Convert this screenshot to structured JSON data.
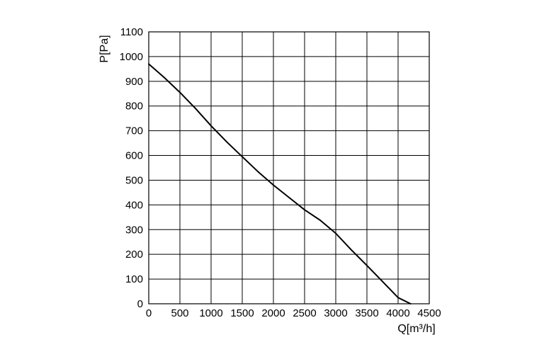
{
  "chart_data": {
    "type": "line",
    "xlabel": "Q[m³/h]",
    "ylabel": "P[Pa]",
    "xlim": [
      0,
      4500
    ],
    "ylim": [
      0,
      1100
    ],
    "xticks": [
      0,
      500,
      1000,
      1500,
      2000,
      2500,
      3000,
      3500,
      4000,
      4500
    ],
    "yticks": [
      0,
      100,
      200,
      300,
      400,
      500,
      600,
      700,
      800,
      900,
      1000,
      1100
    ],
    "grid": true,
    "legend": "none",
    "colors": {
      "line": "#000000",
      "grid": "#000000",
      "background": "#ffffff"
    },
    "series": [
      {
        "x": [
          0,
          250,
          500,
          750,
          1000,
          1250,
          1500,
          1750,
          2000,
          2250,
          2500,
          2750,
          3000,
          3250,
          3500,
          3750,
          4000,
          4200
        ],
        "y": [
          970,
          915,
          855,
          790,
          720,
          655,
          595,
          535,
          480,
          430,
          380,
          338,
          285,
          218,
          155,
          90,
          25,
          0
        ]
      }
    ]
  }
}
